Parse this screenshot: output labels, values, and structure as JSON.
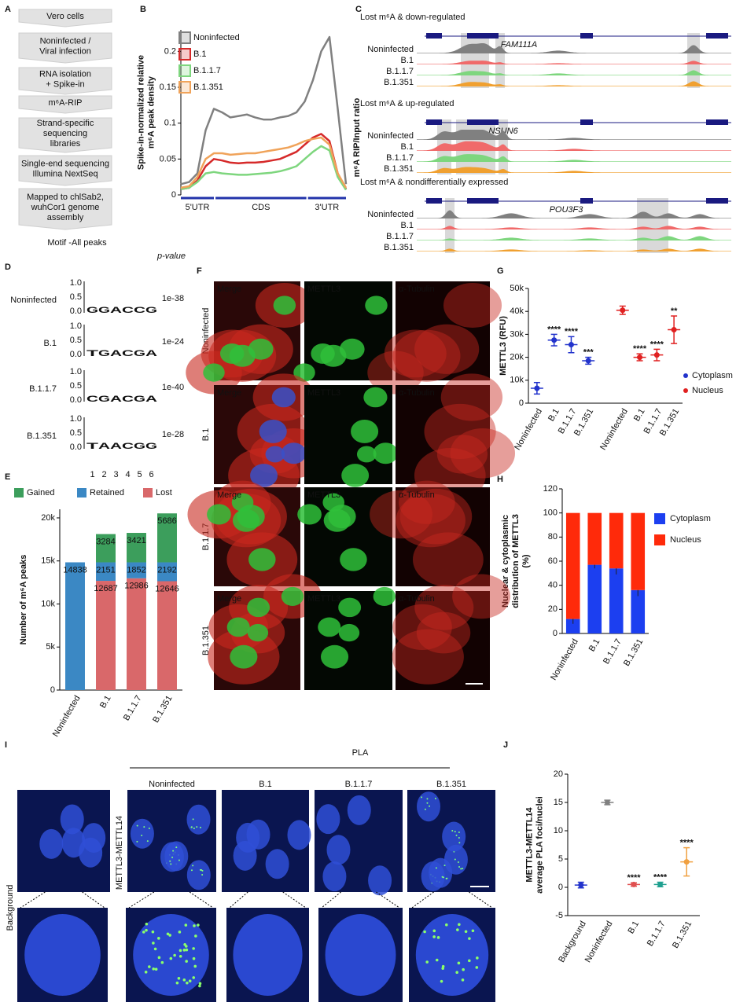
{
  "panel_labels": [
    "A",
    "B",
    "C",
    "D",
    "E",
    "F",
    "G",
    "H",
    "I",
    "J"
  ],
  "flowchart": {
    "steps": [
      [
        "Vero cells"
      ],
      [
        "Noninfected /",
        "Viral infection"
      ],
      [
        "RNA isolation",
        "+ Spike-in"
      ],
      [
        "m⁶A-RIP"
      ],
      [
        "Strand-specific",
        "sequencing",
        "libraries"
      ],
      [
        "Single-end sequencing",
        "Illumina NextSeq"
      ],
      [
        "Mapped to chlSab2,",
        "wuhCor1 genome",
        "assembly"
      ]
    ]
  },
  "tracks": {
    "ylabel": "m⁶A RIP/Input ratio",
    "samples": [
      "Noninfected",
      "B.1",
      "B.1.1.7",
      "B.1.351"
    ],
    "sections": [
      {
        "title": "Lost m⁶A & down-regulated",
        "gene": "FAM111A"
      },
      {
        "title": "Lost m⁶A & up-regulated",
        "gene": "NSUN6"
      },
      {
        "title": "Lost m⁶A & nondifferentially expressed",
        "gene": "POU3F3"
      }
    ]
  },
  "motifs": {
    "title": "Motif -All peaks",
    "pvalue_header": "p-value",
    "axis_ticks": [
      "1.0",
      "0.5",
      "0.0"
    ],
    "positions": [
      "1",
      "2",
      "3",
      "4",
      "5",
      "6"
    ],
    "rows": [
      {
        "name": "Noninfected",
        "motif": "GGACCG",
        "pvalue": "1e-38"
      },
      {
        "name": "B.1",
        "motif": "TGACGA",
        "pvalue": "1e-24"
      },
      {
        "name": "B.1.1.7",
        "motif": "CGACGA",
        "pvalue": "1e-40"
      },
      {
        "name": "B.1.351",
        "motif": "TAACGG",
        "pvalue": "1e-28"
      }
    ]
  },
  "images": {
    "columns": [
      "Merge",
      "METTL3",
      "α-Tubulin"
    ],
    "rows": [
      "Noninfected",
      "B.1",
      "B.1.1.7",
      "B.1.351"
    ]
  },
  "pla": {
    "title": "PLA",
    "columns": [
      "Noninfected",
      "B.1",
      "B.1.1.7",
      "B.1.351"
    ],
    "row_labels": [
      "Background",
      "METTL3-METTL14"
    ]
  },
  "chart_data": [
    {
      "type": "line",
      "ylabel": [
        "Spike-in-normalized relative",
        "m⁶A peak density"
      ],
      "ylim": [
        0,
        0.23
      ],
      "yticks": [
        0,
        0.05,
        0.1,
        0.15,
        0.2
      ],
      "regions": [
        "5'UTR",
        "CDS",
        "3'UTR"
      ],
      "series": [
        {
          "name": "Noninfected",
          "color": "#808080",
          "values": [
            0.015,
            0.018,
            0.03,
            0.09,
            0.12,
            0.115,
            0.108,
            0.11,
            0.112,
            0.108,
            0.105,
            0.105,
            0.108,
            0.11,
            0.115,
            0.13,
            0.16,
            0.2,
            0.22,
            0.12,
            0.015
          ]
        },
        {
          "name": "B.1",
          "color": "#d62a2a",
          "values": [
            0.008,
            0.01,
            0.02,
            0.04,
            0.05,
            0.048,
            0.045,
            0.044,
            0.045,
            0.045,
            0.046,
            0.048,
            0.05,
            0.055,
            0.06,
            0.07,
            0.08,
            0.085,
            0.075,
            0.03,
            0.008
          ]
        },
        {
          "name": "B.1.1.7",
          "color": "#7ed67e",
          "values": [
            0.008,
            0.01,
            0.018,
            0.03,
            0.032,
            0.03,
            0.029,
            0.028,
            0.028,
            0.029,
            0.03,
            0.031,
            0.033,
            0.036,
            0.04,
            0.05,
            0.06,
            0.068,
            0.062,
            0.025,
            0.007
          ]
        },
        {
          "name": "B.1.351",
          "color": "#f0a35a",
          "values": [
            0.01,
            0.012,
            0.025,
            0.05,
            0.058,
            0.058,
            0.056,
            0.057,
            0.058,
            0.058,
            0.06,
            0.062,
            0.064,
            0.066,
            0.07,
            0.075,
            0.078,
            0.08,
            0.07,
            0.03,
            0.01
          ]
        }
      ]
    },
    {
      "type": "bar",
      "stacked": true,
      "ylabel": "Number of m⁶A peaks",
      "categories": [
        "Noninfected",
        "B.1",
        "B.1.1.7",
        "B.1.351"
      ],
      "ylim": [
        0,
        21000
      ],
      "yticks": [
        0,
        {
          "value": 5000,
          "label": "5k"
        },
        {
          "value": 10000,
          "label": "10k"
        },
        {
          "value": 15000,
          "label": "15k"
        },
        {
          "value": 20000,
          "label": "20k"
        }
      ],
      "series": [
        {
          "name": "Lost",
          "color": "#d9686a",
          "values": [
            null,
            12687,
            12986,
            12646
          ]
        },
        {
          "name": "Retained",
          "color": "#3b88c4",
          "values": [
            14838,
            2151,
            1852,
            2192
          ]
        },
        {
          "name": "Gained",
          "color": "#3c9e5c",
          "values": [
            null,
            3284,
            3421,
            5686
          ]
        }
      ]
    },
    {
      "type": "scatter",
      "ylabel": "METTL3 (RFU)",
      "categories": [
        "Noninfected",
        "B.1",
        "B.1.1.7",
        "B.1.351"
      ],
      "ylim": [
        0,
        50000
      ],
      "yticks": [
        0,
        {
          "value": 10000,
          "label": "10k"
        },
        {
          "value": 20000,
          "label": "20k"
        },
        {
          "value": 30000,
          "label": "30k"
        },
        {
          "value": 40000,
          "label": "40k"
        },
        {
          "value": 50000,
          "label": "50k"
        }
      ],
      "series": [
        {
          "name": "Cytoplasm",
          "color": "#2233cc",
          "values": [
            6500,
            27500,
            25500,
            18500
          ],
          "errors": [
            2500,
            2500,
            3500,
            1500
          ],
          "annotations": [
            null,
            "****",
            "****",
            "***"
          ]
        },
        {
          "name": "Nucleus",
          "color": "#e02020",
          "values": [
            40500,
            20000,
            21000,
            32000
          ],
          "errors": [
            1800,
            1500,
            2500,
            6000
          ],
          "annotations": [
            null,
            "****",
            "****",
            "**"
          ]
        }
      ]
    },
    {
      "type": "bar",
      "stacked": true,
      "ylabel": [
        "Nuclear & cytoplasmic",
        "distribution of METTL3",
        "(%)"
      ],
      "categories": [
        "Noninfected",
        "B.1",
        "B.1.1.7",
        "B.1.351"
      ],
      "ylim": [
        0,
        120
      ],
      "yticks": [
        0,
        20,
        40,
        60,
        80,
        100,
        120
      ],
      "series": [
        {
          "name": "Cytoplasm",
          "color": "#1c3ff0",
          "values": [
            12,
            57,
            54,
            36
          ],
          "errors": [
            4,
            3,
            5,
            5
          ]
        },
        {
          "name": "Nucleus",
          "color": "#ff2a0a",
          "values": [
            88,
            43,
            46,
            64
          ]
        }
      ]
    },
    {
      "type": "scatter",
      "ylabel": [
        "METTL3-METTL14",
        "average PLA foci/nuclei"
      ],
      "categories": [
        "Background",
        "Noninfected",
        "B.1",
        "B.1.1.7",
        "B.1.351"
      ],
      "ylim": [
        -5,
        20
      ],
      "yticks": [
        -5,
        0,
        5,
        10,
        15,
        20
      ],
      "colors": [
        "#2233cc",
        "#808080",
        "#e05050",
        "#20a090",
        "#f0a040"
      ],
      "values": [
        0.4,
        15,
        0.5,
        0.5,
        4.5
      ],
      "errors": [
        0.5,
        0.4,
        0.3,
        0.4,
        2.5
      ],
      "annotations": [
        null,
        null,
        "****",
        "****",
        "****"
      ]
    }
  ]
}
